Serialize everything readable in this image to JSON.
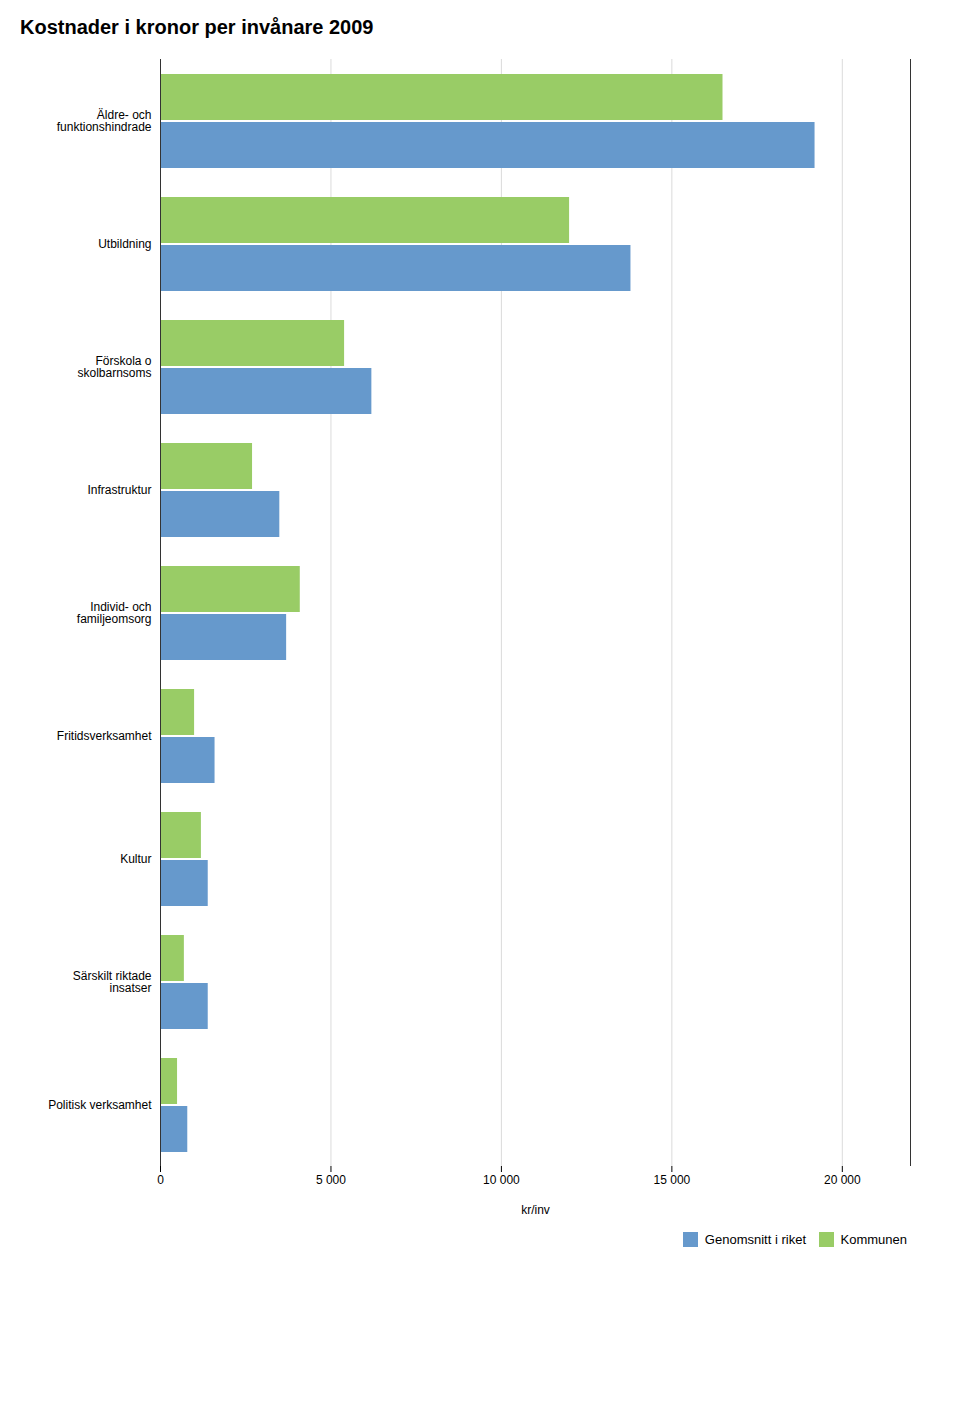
{
  "chart_data": {
    "type": "bar",
    "orientation": "horizontal",
    "title": "Kostnader i kronor per invånare 2009",
    "categories": [
      "Äldre- och\nfunktionshindrade",
      "Utbildning",
      "Förskola o\nskolbarnsoms",
      "Infrastruktur",
      "Individ- och\nfamiljeomsorg",
      "Fritidsverksamhet",
      "Kultur",
      "Särskilt riktade\ninsatser",
      "Politisk verksamhet"
    ],
    "series": [
      {
        "name": "Genomsnitt i riket",
        "color": "#6699cc",
        "values": [
          19200,
          13800,
          6200,
          3500,
          3700,
          1600,
          1400,
          1400,
          800
        ]
      },
      {
        "name": "Kommunen",
        "color": "#99cc66",
        "values": [
          16500,
          12000,
          5400,
          2700,
          4100,
          1000,
          1200,
          700,
          500
        ]
      }
    ],
    "xlabel": "kr/inv",
    "xlim": [
      0,
      22000
    ],
    "xticks": [
      0,
      {
        "value": 5000,
        "label": "5 000"
      },
      {
        "value": 10000,
        "label": "10 000"
      },
      {
        "value": 15000,
        "label": "15 000"
      },
      {
        "value": 20000,
        "label": "20 000"
      }
    ],
    "grid": true,
    "legend": "lower right"
  }
}
